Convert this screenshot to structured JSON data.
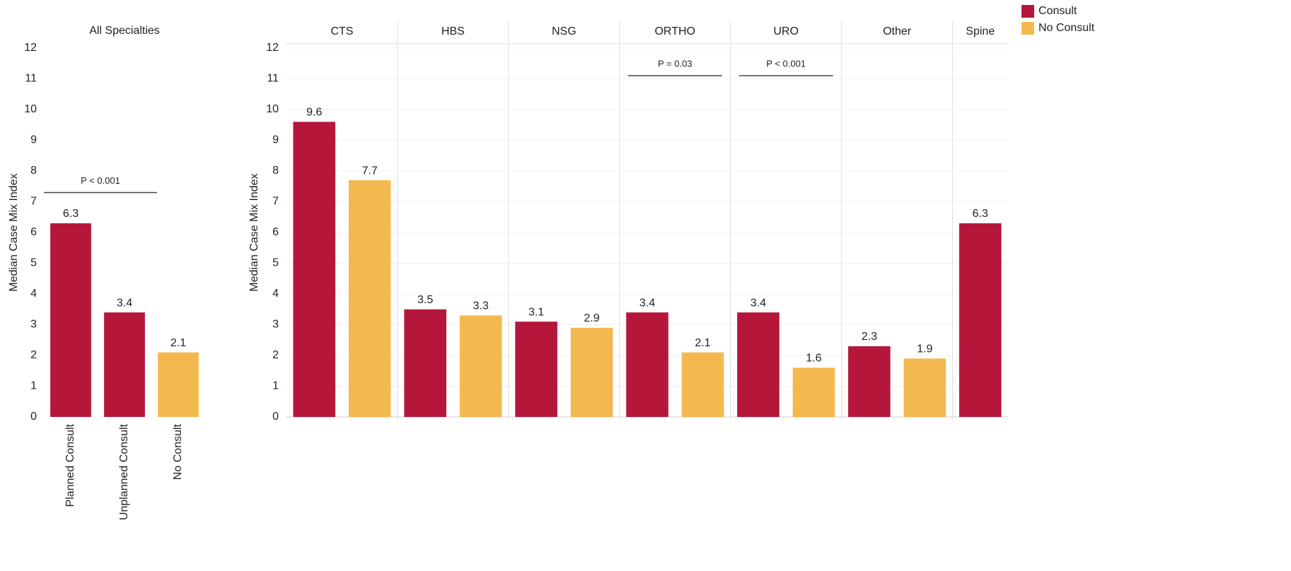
{
  "chart_data": [
    {
      "type": "bar",
      "title": "All Specialties",
      "categories": [
        "Planned Consult",
        "Unplanned Consult",
        "No Consult"
      ],
      "values": [
        6.3,
        3.4,
        2.1
      ],
      "colors": [
        "#b5173b",
        "#b5173b",
        "#f4b94e"
      ],
      "ylabel": "Median Case Mix Index",
      "ylim": [
        0,
        12
      ],
      "yticks": [
        0,
        1,
        2,
        3,
        4,
        5,
        6,
        7,
        8,
        9,
        10,
        11,
        12
      ],
      "grid": false,
      "annotations": [
        {
          "text": "P < 0.001",
          "from": "Planned Consult",
          "to": "No Consult",
          "y": 7.3
        }
      ]
    },
    {
      "type": "facet",
      "categories": [
        "CTS",
        "HBS",
        "NSG",
        "ORTHO",
        "URO",
        "Other",
        "Spine"
      ],
      "series": [
        {
          "name": "Consult",
          "color": "#b5173b",
          "values": [
            9.6,
            3.5,
            3.1,
            3.4,
            3.4,
            2.3,
            6.3
          ]
        },
        {
          "name": "No Consult",
          "color": "#f4b94e",
          "values": [
            7.7,
            3.3,
            2.9,
            2.1,
            1.6,
            1.9,
            null
          ]
        }
      ],
      "ylabel": "Median Case Mix Index",
      "ylim": [
        0,
        12
      ],
      "yticks": [
        0,
        1,
        2,
        3,
        4,
        5,
        6,
        7,
        8,
        9,
        10,
        11,
        12
      ],
      "grid": true,
      "legend": "top-right",
      "annotations": [
        {
          "text": "P = 0.03",
          "from": "ORTHO",
          "to": "ORTHO",
          "y": 11.1
        },
        {
          "text": "P < 0.001",
          "from": "URO",
          "to": "URO",
          "y": 11.1
        }
      ]
    }
  ]
}
